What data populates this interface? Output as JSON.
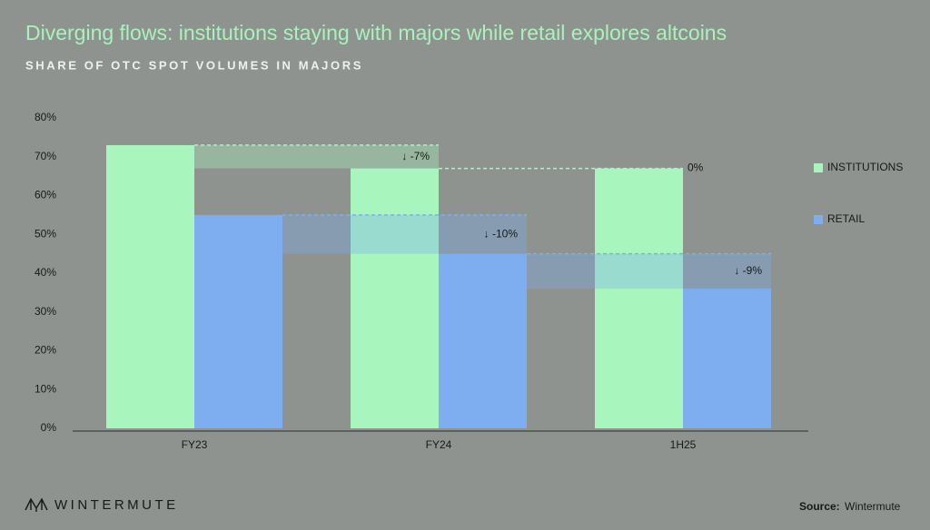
{
  "chart_data": {
    "type": "bar",
    "title": "Diverging flows: institutions staying with majors while retail explores altcoins",
    "subtitle": "SHARE OF OTC SPOT VOLUMES IN MAJORS",
    "categories": [
      "FY23",
      "FY24",
      "1H25"
    ],
    "series": [
      {
        "name": "INSTITUTIONS",
        "color": "#a8f5bd",
        "values": [
          73,
          67,
          67
        ]
      },
      {
        "name": "RETAIL",
        "color": "#7eaef0",
        "values": [
          55,
          45,
          36
        ]
      }
    ],
    "annotations": [
      "↓ -7%",
      "↓ -10%",
      "0%",
      "↓ -9%"
    ],
    "ylim": [
      0,
      80
    ],
    "yticks": [
      {
        "value": 0,
        "label": "0%"
      },
      {
        "value": 10,
        "label": "10%"
      },
      {
        "value": 20,
        "label": "20%"
      },
      {
        "value": 30,
        "label": "30%"
      },
      {
        "value": 40,
        "label": "40%"
      },
      {
        "value": 50,
        "label": "50%"
      },
      {
        "value": 60,
        "label": "60%"
      },
      {
        "value": 70,
        "label": "70%"
      },
      {
        "value": 80,
        "label": "80%"
      }
    ],
    "legend": "right"
  },
  "footer": {
    "brand": "WINTERMUTE",
    "source_label": "Source:",
    "source": "Wintermute"
  }
}
